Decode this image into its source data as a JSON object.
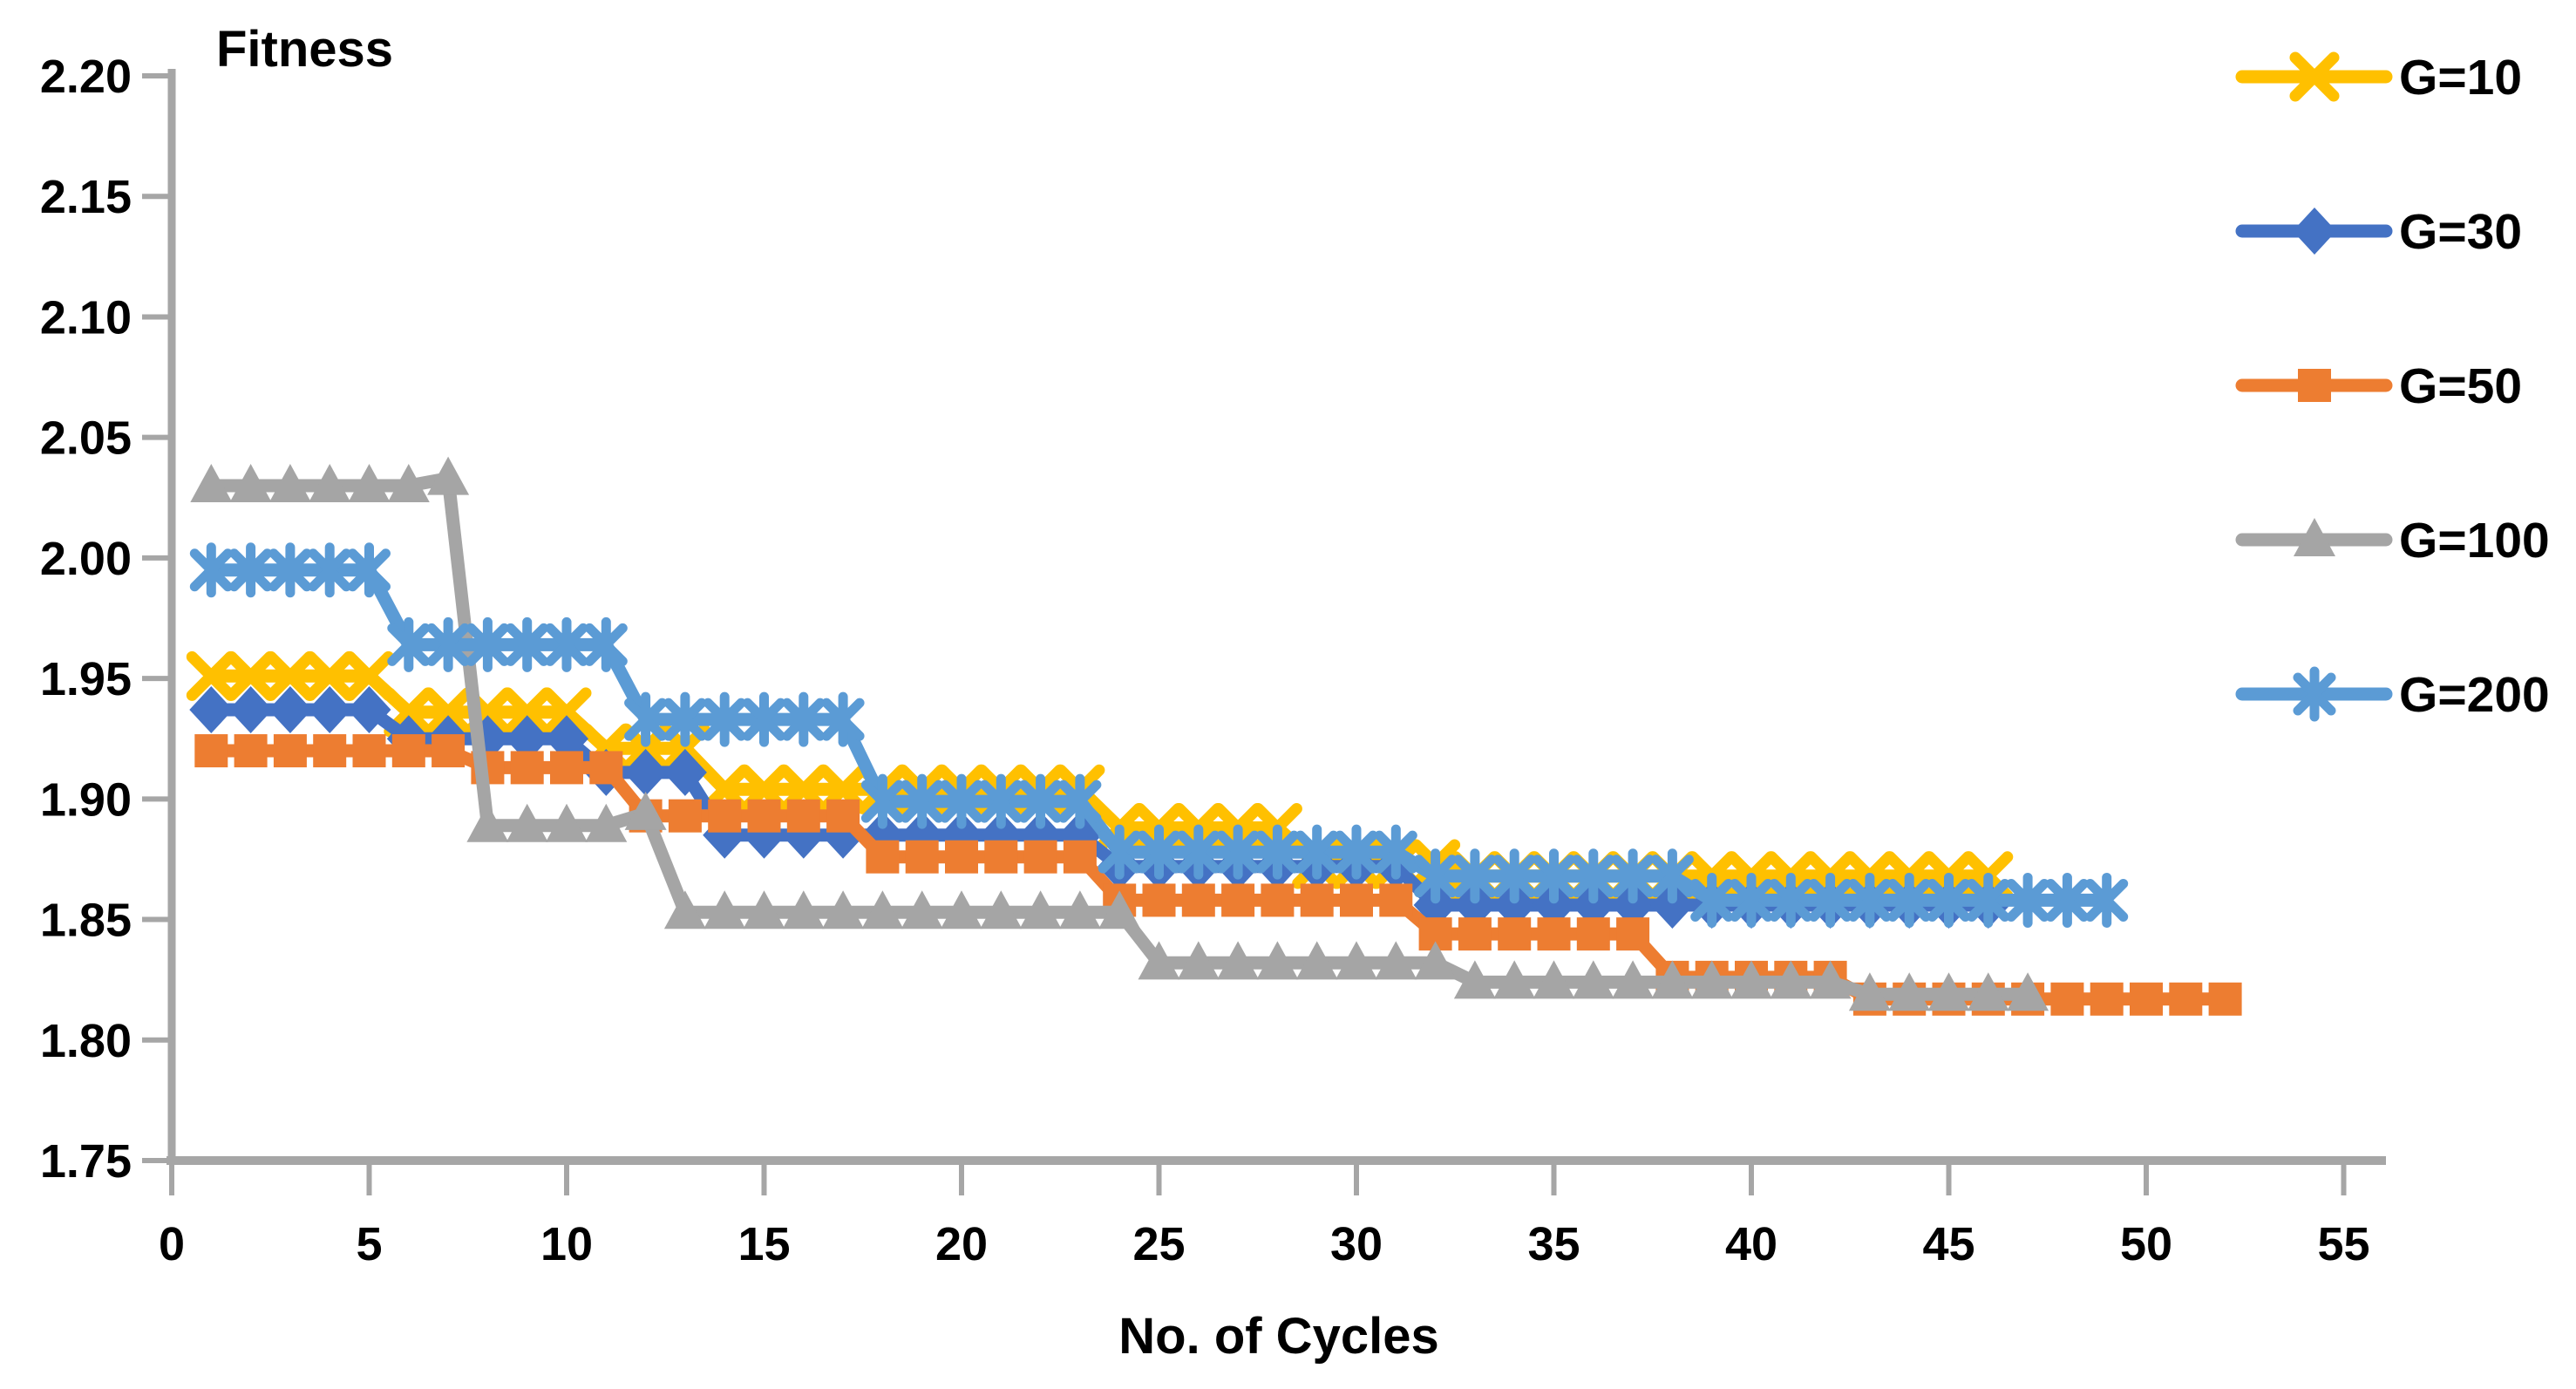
{
  "page": {
    "background": "#FFFFFF"
  },
  "chart_data": {
    "type": "line",
    "title": "Fitness",
    "xlabel": "No. of Cycles",
    "ylabel": "",
    "xlim": [
      0,
      56
    ],
    "ylim": [
      1.75,
      2.2
    ],
    "grid": false,
    "legend_position": "right",
    "axis_color": "#A6A6A6",
    "text_color": "#000000",
    "x_tick_labels": [
      "0",
      "5",
      "10",
      "15",
      "20",
      "25",
      "30",
      "35",
      "40",
      "45",
      "50",
      "55"
    ],
    "x_tick_values": [
      0,
      5,
      10,
      15,
      20,
      25,
      30,
      35,
      40,
      45,
      50,
      55
    ],
    "y_tick_labels": [
      "2.20",
      "2.15",
      "2.10",
      "2.05",
      "2.00",
      "1.95",
      "1.90",
      "1.85",
      "1.80",
      "1.75"
    ],
    "y_tick_values": [
      2.2,
      2.15,
      2.1,
      2.05,
      2.0,
      1.95,
      1.9,
      1.85,
      1.8,
      1.75
    ],
    "series": [
      {
        "name": "G=10",
        "color": "#FFC000",
        "marker": "x",
        "steps": [
          [
            1,
            5,
            1.951
          ],
          [
            6,
            10,
            1.936
          ],
          [
            11,
            13,
            1.921
          ],
          [
            14,
            23,
            1.904
          ],
          [
            24,
            28,
            1.888
          ],
          [
            29,
            32,
            1.873
          ],
          [
            33,
            46,
            1.868
          ]
        ]
      },
      {
        "name": "G=30",
        "color": "#4472C4",
        "marker": "diamond",
        "steps": [
          [
            1,
            5,
            1.937
          ],
          [
            6,
            10,
            1.925
          ],
          [
            11,
            13,
            1.911
          ],
          [
            14,
            23,
            1.885
          ],
          [
            24,
            31,
            1.872
          ],
          [
            32,
            46,
            1.856
          ]
        ]
      },
      {
        "name": "G=50",
        "color": "#ED7D31",
        "marker": "square",
        "steps": [
          [
            1,
            7,
            1.92
          ],
          [
            8,
            11,
            1.913
          ],
          [
            12,
            17,
            1.893
          ],
          [
            18,
            23,
            1.876
          ],
          [
            24,
            31,
            1.858
          ],
          [
            32,
            37,
            1.844
          ],
          [
            38,
            42,
            1.826
          ],
          [
            43,
            52,
            1.817
          ]
        ]
      },
      {
        "name": "G=100",
        "color": "#A5A5A5",
        "marker": "triangle",
        "steps": [
          [
            1,
            6,
            2.03
          ],
          [
            7,
            7,
            2.033
          ],
          [
            8,
            11,
            1.889
          ],
          [
            12,
            12,
            1.894
          ],
          [
            13,
            24,
            1.853
          ],
          [
            25,
            32,
            1.832
          ],
          [
            33,
            42,
            1.824
          ],
          [
            43,
            47,
            1.819
          ]
        ]
      },
      {
        "name": "G=200",
        "color": "#5B9BD5",
        "marker": "asterisk",
        "steps": [
          [
            1,
            5,
            1.995
          ],
          [
            6,
            11,
            1.964
          ],
          [
            12,
            17,
            1.933
          ],
          [
            18,
            23,
            1.899
          ],
          [
            24,
            31,
            1.878
          ],
          [
            32,
            38,
            1.868
          ],
          [
            39,
            49,
            1.858
          ]
        ]
      }
    ]
  }
}
